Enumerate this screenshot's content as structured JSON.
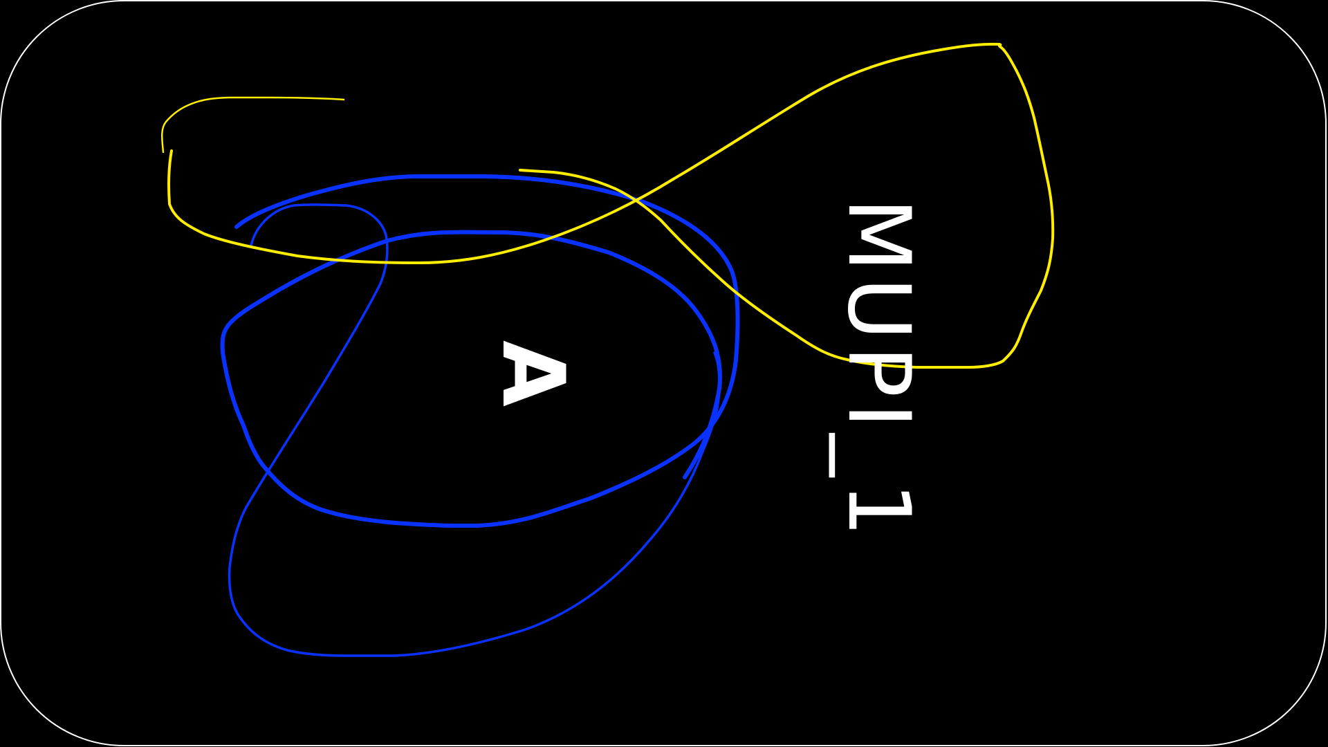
{
  "card": {
    "code": "MUPI_1",
    "grade": "A"
  },
  "colors": {
    "background": "#000000",
    "frame": "#ffffff",
    "text": "#ffffff",
    "blue_stroke": "#0a32ff",
    "yellow_stroke": "#ffee00"
  },
  "icons": {
    "blue_scribble": "blue-loop-scribble",
    "yellow_scribble": "yellow-loop-scribble"
  }
}
